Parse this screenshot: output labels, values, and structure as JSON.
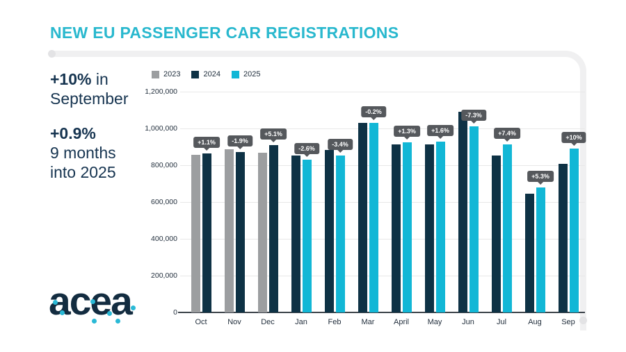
{
  "title": "NEW EU PASSENGER CAR REGISTRATIONS",
  "stats": [
    {
      "strong": "+10%",
      "rest": " in",
      "line2": "September"
    },
    {
      "strong": "+0.9%",
      "rest": "",
      "line2": "9 months",
      "line3": "into 2025"
    }
  ],
  "logo_text": "acea",
  "colors": {
    "title": "#29b8ce",
    "navy_text": "#163450",
    "bar_2023": "#9c9ea0",
    "bar_2024": "#0e3245",
    "bar_2025": "#12b7d6",
    "badge_bg": "#55585c",
    "gridline": "#e8e8e8",
    "axis": "#3b4249",
    "frame": "#f0f0f1",
    "logo_dot": "#2ab9d6"
  },
  "chart_data": {
    "type": "bar",
    "title": "NEW EU PASSENGER CAR REGISTRATIONS",
    "categories": [
      "Oct",
      "Nov",
      "Dec",
      "Jan",
      "Feb",
      "Mar",
      "April",
      "May",
      "Jun",
      "Jul",
      "Aug",
      "Sep"
    ],
    "series": [
      {
        "name": "2023",
        "color": "#9c9ea0",
        "values": [
          857000,
          887000,
          867000,
          null,
          null,
          null,
          null,
          null,
          null,
          null,
          null,
          null
        ]
      },
      {
        "name": "2024",
        "color": "#0e3245",
        "values": [
          866000,
          870000,
          910000,
          852000,
          884000,
          1031000,
          914000,
          912000,
          1090000,
          852000,
          644000,
          809000
        ]
      },
      {
        "name": "2025",
        "color": "#12b7d6",
        "values": [
          null,
          null,
          null,
          831000,
          854000,
          1029000,
          926000,
          927000,
          1011000,
          915000,
          678000,
          890000
        ]
      }
    ],
    "pct_labels": [
      "+1.1%",
      "-1.9%",
      "+5.1%",
      "-2.6%",
      "-3.4%",
      "-0.2%",
      "+1.3%",
      "+1.6%",
      "-7.3%",
      "+7.4%",
      "+5.3%",
      "+10%"
    ],
    "xlabel": "",
    "ylabel": "",
    "ylim": [
      0,
      1200000
    ],
    "ytick_step": 200000,
    "yticks": [
      "0",
      "200,000",
      "400,000",
      "600,000",
      "800,000",
      "1,000,000",
      "1,200,000"
    ],
    "grid": true,
    "legend_position": "top-left"
  }
}
